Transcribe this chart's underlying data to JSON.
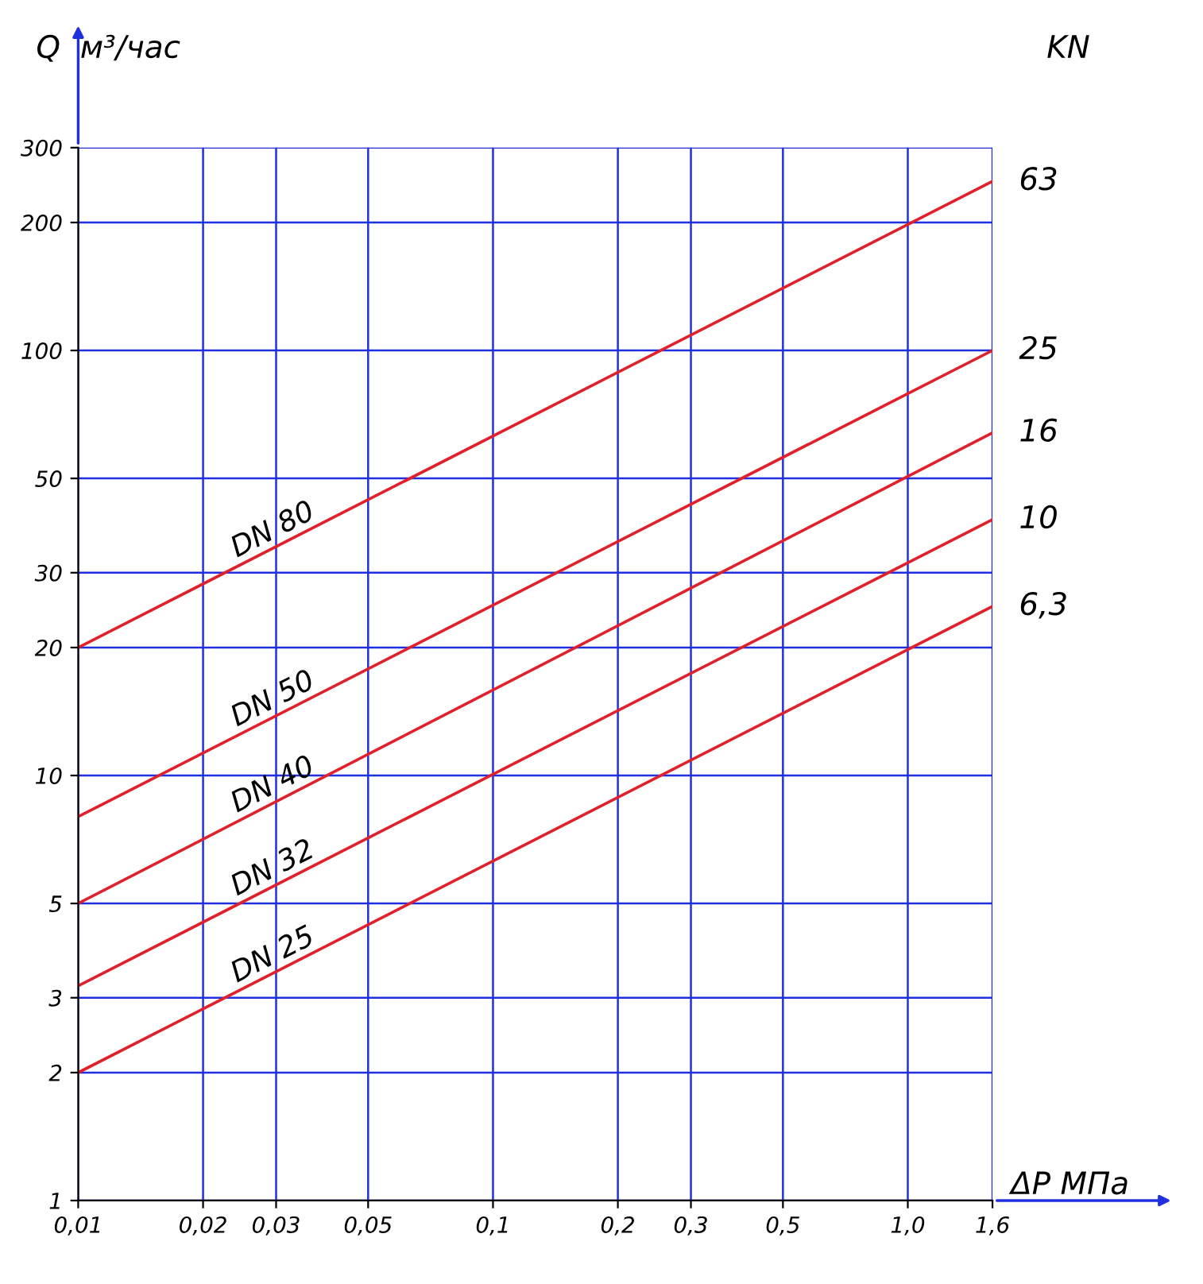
{
  "chart_data": {
    "type": "line",
    "xlabel": "ΔP МПа",
    "ylabel": "Q  м³/час",
    "log": "xy",
    "x": [
      0.01,
      1.6
    ],
    "series": [
      {
        "name": "DN 80",
        "color": "#e0202a",
        "values": [
          20,
          250
        ]
      },
      {
        "name": "DN 50",
        "color": "#e0202a",
        "values": [
          8,
          100
        ]
      },
      {
        "name": "DN 40",
        "color": "#e0202a",
        "values": [
          5,
          64
        ]
      },
      {
        "name": "DN 32",
        "color": "#e0202a",
        "values": [
          3.2,
          40
        ]
      },
      {
        "name": "DN 25",
        "color": "#e0202a",
        "values": [
          2,
          25
        ]
      }
    ],
    "annotations": [
      "KN",
      "63",
      "25",
      "16",
      "10",
      "6,3"
    ],
    "xlim": [
      0.01,
      1.6
    ],
    "ylim": [
      1,
      300
    ],
    "xticks": [
      {
        "value": 0.01,
        "label": "0,01"
      },
      {
        "value": 0.02,
        "label": "0,02"
      },
      {
        "value": 0.03,
        "label": "0,03"
      },
      {
        "value": 0.05,
        "label": "0,05"
      },
      {
        "value": 0.1,
        "label": "0,1"
      },
      {
        "value": 0.2,
        "label": "0,2"
      },
      {
        "value": 0.3,
        "label": "0,3"
      },
      {
        "value": 0.5,
        "label": "0,5"
      },
      {
        "value": 1.0,
        "label": "1,0"
      },
      {
        "value": 1.6,
        "label": "1,6"
      }
    ],
    "yticks": [
      1,
      2,
      3,
      5,
      10,
      20,
      30,
      50,
      100,
      200,
      300
    ],
    "grid": true,
    "marker": "none",
    "line_style": "solid",
    "legend": false
  }
}
